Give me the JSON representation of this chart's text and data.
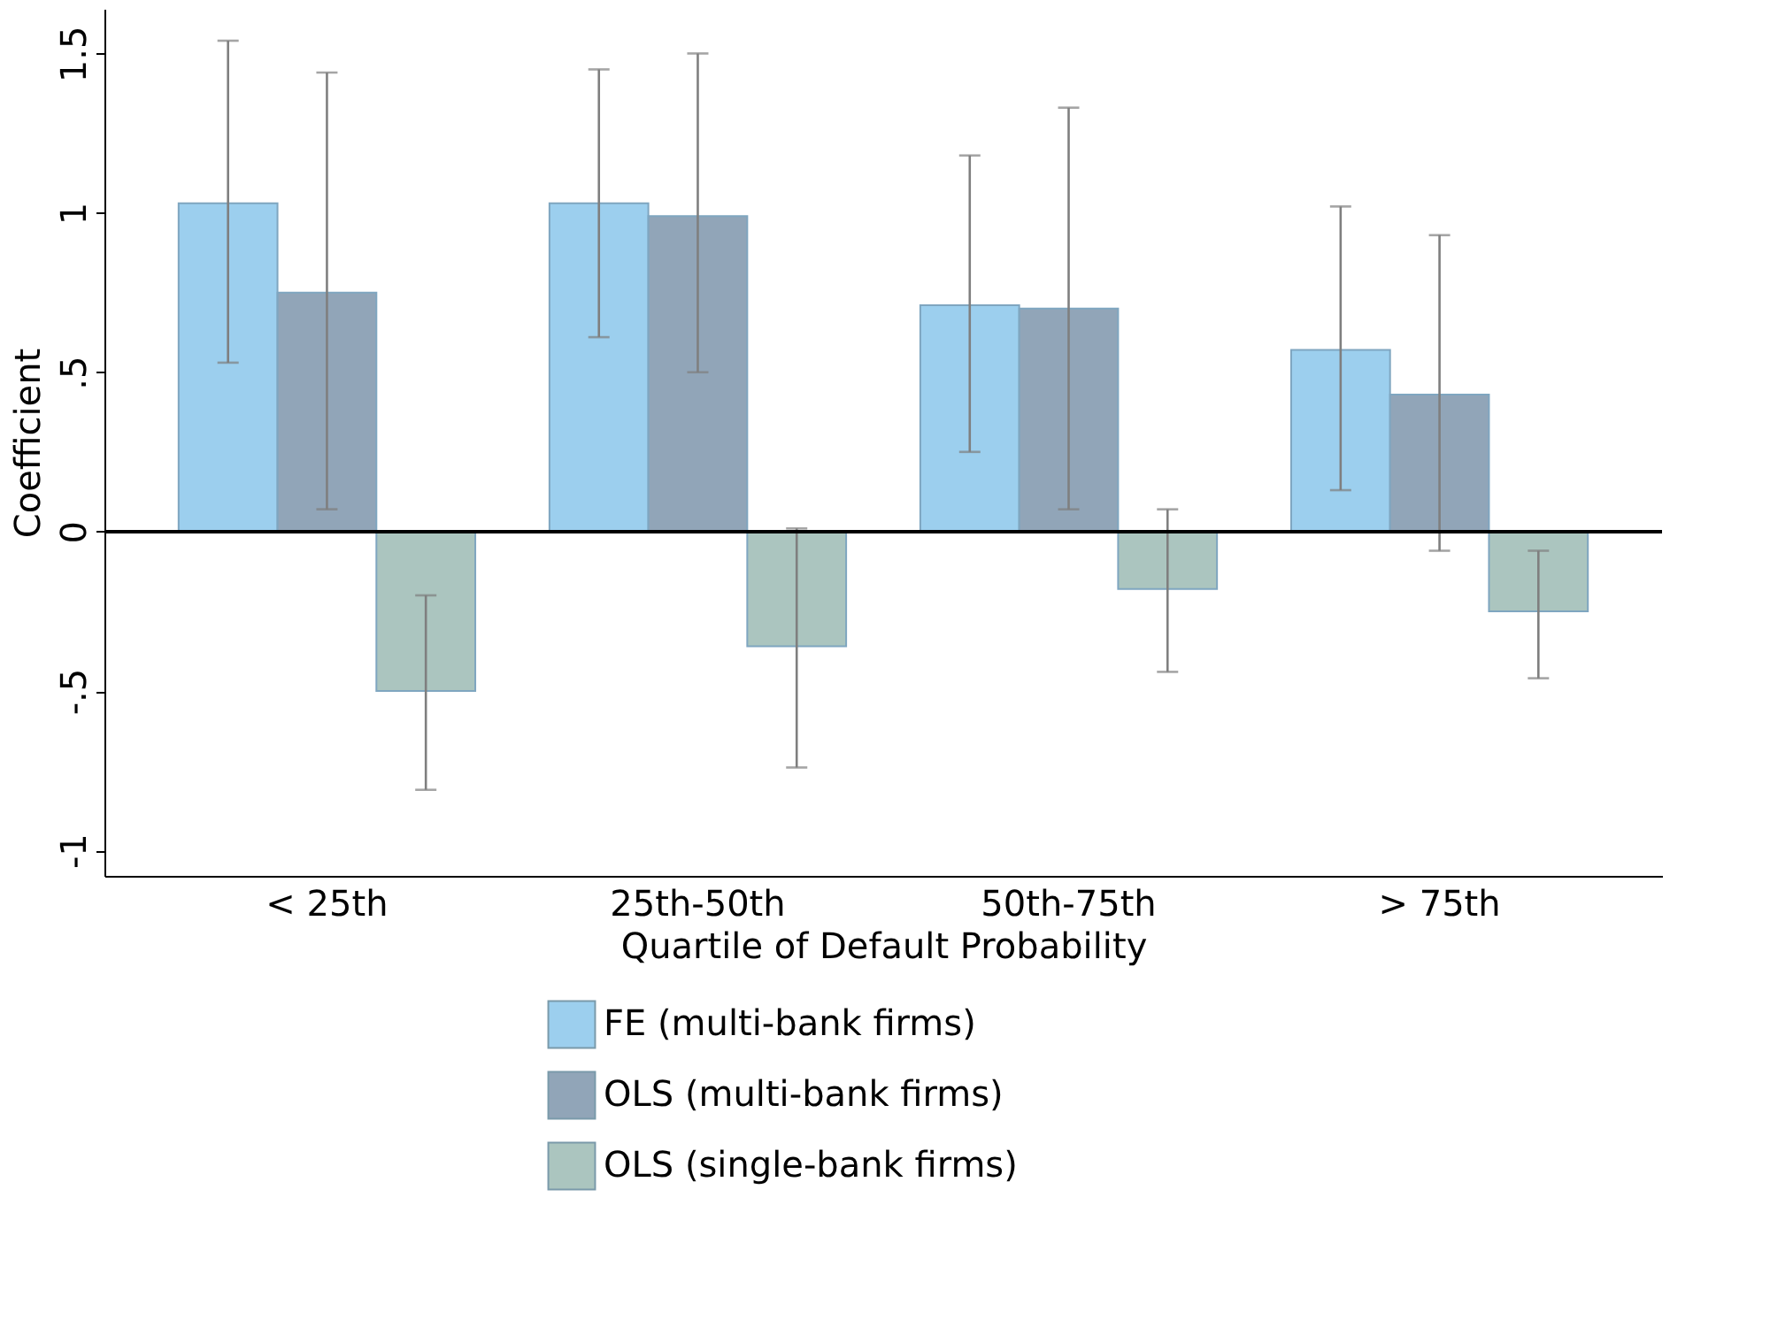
{
  "chart_data": {
    "type": "bar",
    "xlabel": "Quartile of Default Probability",
    "ylabel": "Coefficient",
    "categories": [
      "< 25th",
      "25th-50th",
      "50th-75th",
      "> 75th"
    ],
    "series": [
      {
        "name": "FE (multi-bank firms)",
        "color": "#9ccfee",
        "values": [
          1.03,
          1.03,
          0.71,
          0.57
        ],
        "errors": [
          [
            0.53,
            1.54
          ],
          [
            0.61,
            1.45
          ],
          [
            0.25,
            1.18
          ],
          [
            0.13,
            1.02
          ]
        ]
      },
      {
        "name": "OLS (multi-bank firms)",
        "color": "#91a5b8",
        "values": [
          0.75,
          0.99,
          0.7,
          0.43
        ],
        "errors": [
          [
            0.07,
            1.44
          ],
          [
            0.5,
            1.5
          ],
          [
            0.07,
            1.33
          ],
          [
            -0.06,
            0.93
          ]
        ]
      },
      {
        "name": "OLS (single-bank firms)",
        "color": "#abc5bf",
        "values": [
          -0.5,
          -0.36,
          -0.18,
          -0.25
        ],
        "errors": [
          [
            -0.81,
            -0.2
          ],
          [
            -0.74,
            0.01
          ],
          [
            -0.44,
            0.07
          ],
          [
            -0.46,
            -0.06
          ]
        ]
      }
    ],
    "ylim": [
      -1.08,
      1.64
    ],
    "yticks": [
      {
        "value": -1,
        "label": "-1"
      },
      {
        "value": -0.5,
        "label": "-.5"
      },
      {
        "value": 0,
        "label": "0"
      },
      {
        "value": 0.5,
        "label": ".5"
      },
      {
        "value": 1,
        "label": "1"
      },
      {
        "value": 1.5,
        "label": "1.5"
      }
    ],
    "ref_lines": [
      {
        "axis": "y",
        "value": 0,
        "color": "#000000"
      }
    ],
    "grid": false,
    "legend": "bottom"
  }
}
